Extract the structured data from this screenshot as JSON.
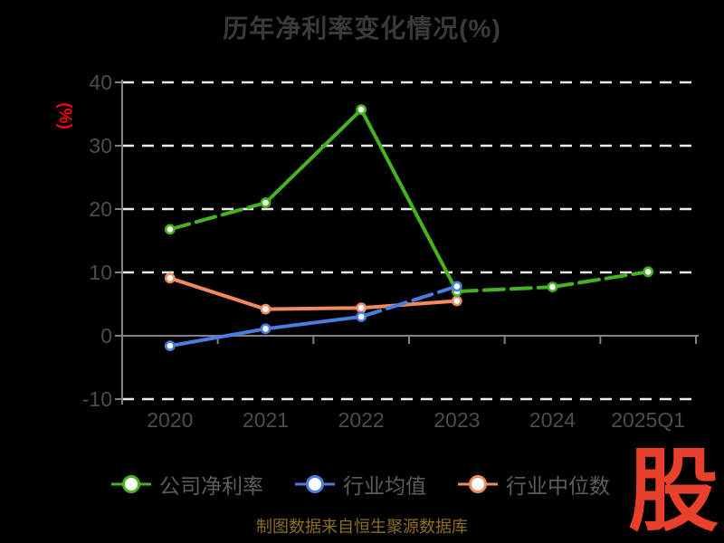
{
  "source_note": "制图数据来自恒生聚源数据库",
  "logo": {
    "text": "股",
    "color": "#e8402a"
  },
  "colors": {
    "background": "#000000",
    "title_text": "#3a3a3a",
    "axis_text": "#4c4c4c",
    "legend_text": "#5c5c5c",
    "grid_line": "#ebebeb",
    "axis_line": "#828282",
    "y_unit_label": "#fe0000",
    "source_text": "#8e6d1e",
    "logo_red": "#e8402a"
  },
  "chart_data": {
    "type": "line",
    "title": "历年净利率变化情况(%)",
    "ylabel": "(%)",
    "xlabel": "",
    "categories": [
      "2020",
      "2021",
      "2022",
      "2023",
      "2024",
      "2025Q1"
    ],
    "series": [
      {
        "name": "公司净利率",
        "color": "#45b31d",
        "values": [
          16.8,
          21.0,
          35.7,
          7.0,
          7.7,
          10.1
        ],
        "dash_segments": [
          0,
          3,
          4
        ]
      },
      {
        "name": "行业均值",
        "color": "#4a7de0",
        "values": [
          -1.6,
          1.1,
          3.0,
          7.8,
          null,
          null
        ],
        "dash_segments": [
          2
        ]
      },
      {
        "name": "行业中位数",
        "color": "#f28a61",
        "values": [
          9.1,
          4.2,
          4.4,
          5.5,
          null,
          null
        ],
        "dash_segments": []
      }
    ],
    "ylim": [
      -10,
      40
    ],
    "yticks": [
      40,
      30,
      20,
      10,
      0,
      -10
    ],
    "grid": "dashed-horizontal",
    "marker": "white-filled-circle",
    "legend_position": "bottom-left"
  }
}
